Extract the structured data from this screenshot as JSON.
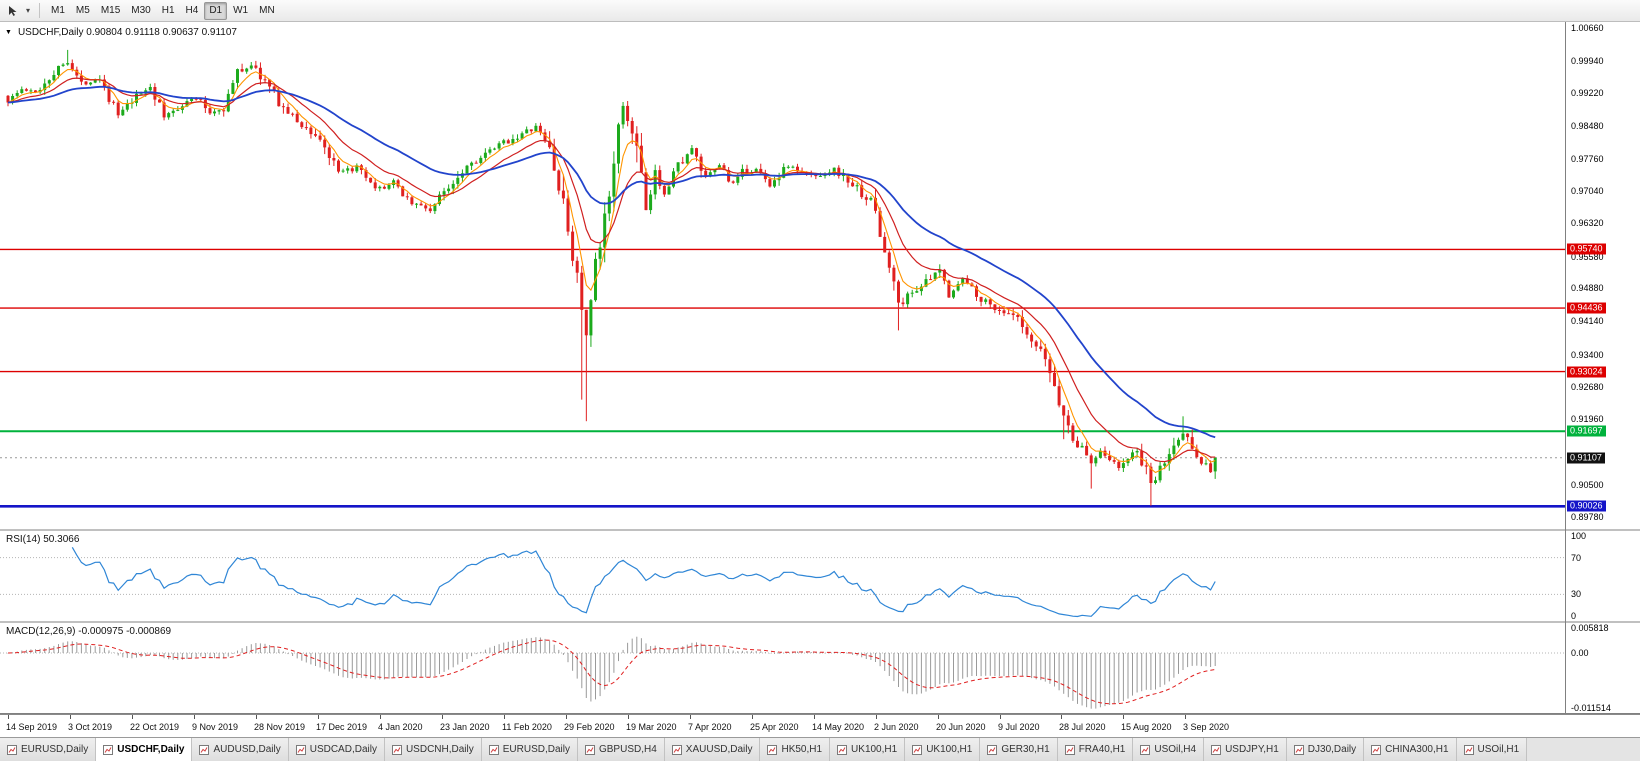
{
  "toolbar": {
    "timeframes": [
      {
        "label": "M1",
        "active": false
      },
      {
        "label": "M5",
        "active": false
      },
      {
        "label": "M15",
        "active": false
      },
      {
        "label": "M30",
        "active": false
      },
      {
        "label": "H1",
        "active": false
      },
      {
        "label": "H4",
        "active": false
      },
      {
        "label": "D1",
        "active": true
      },
      {
        "label": "W1",
        "active": false
      },
      {
        "label": "MN",
        "active": false
      }
    ]
  },
  "main_chart": {
    "title": "USDCHF,Daily",
    "ohlc_text": "0.90804 0.91118 0.90637 0.91107",
    "collapse_arrow": "▼",
    "price_range": {
      "top": 1.008,
      "bottom": 0.895
    },
    "grid_labels": [
      {
        "text": "1.00660",
        "value": 1.0066
      },
      {
        "text": "0.99940",
        "value": 0.9994
      },
      {
        "text": "0.99220",
        "value": 0.9922
      },
      {
        "text": "0.98480",
        "value": 0.9848
      },
      {
        "text": "0.97760",
        "value": 0.9776
      },
      {
        "text": "0.97040",
        "value": 0.9704
      },
      {
        "text": "0.96320",
        "value": 0.9632
      },
      {
        "text": "0.95580",
        "value": 0.9558
      },
      {
        "text": "0.94880",
        "value": 0.9488
      },
      {
        "text": "0.94140",
        "value": 0.9414
      },
      {
        "text": "0.93400",
        "value": 0.934
      },
      {
        "text": "0.92680",
        "value": 0.9268
      },
      {
        "text": "0.91960",
        "value": 0.9196
      },
      {
        "text": "0.90500",
        "value": 0.905
      },
      {
        "text": "0.89780",
        "value": 0.8978
      }
    ],
    "hlines": [
      {
        "value": 0.9574,
        "label": "0.95740",
        "color": "#dd0000",
        "width": 1.4
      },
      {
        "value": 0.94436,
        "label": "0.94436",
        "color": "#dd0000",
        "width": 1.4
      },
      {
        "value": 0.93024,
        "label": "0.93024",
        "color": "#dd0000",
        "width": 1.4
      },
      {
        "value": 0.91697,
        "label": "0.91697",
        "color": "#00b23c",
        "width": 2
      },
      {
        "value": 0.90026,
        "label": "0.90026",
        "color": "#1414c8",
        "width": 2.6
      }
    ],
    "current_price": {
      "value": 0.91107,
      "label": "0.91107",
      "badge_color": "#111111"
    }
  },
  "rsi_panel": {
    "title": "RSI(14)",
    "value": "50.3066",
    "line_color": "#2f86d6",
    "levels": [
      70,
      30
    ],
    "axis_labels": [
      {
        "text": "100",
        "value": 100
      },
      {
        "text": "70",
        "value": 70
      },
      {
        "text": "30",
        "value": 30
      },
      {
        "text": "0",
        "value": 0
      }
    ]
  },
  "macd_panel": {
    "title": "MACD(12,26,9)",
    "values_text": "-0.000975 -0.000869",
    "hist_color": "#9a9a9a",
    "signal_color": "#e02020",
    "range": {
      "top": 0.0064,
      "bottom": -0.0126
    },
    "axis_labels": [
      {
        "text": "0.005818",
        "value": 0.005818
      },
      {
        "text": "0.00",
        "value": 0
      },
      {
        "text": "-0.011514",
        "value": -0.011514
      }
    ]
  },
  "time_axis": {
    "labels": [
      "14 Sep 2019",
      "3 Oct 2019",
      "22 Oct 2019",
      "9 Nov 2019",
      "28 Nov 2019",
      "17 Dec 2019",
      "4 Jan 2020",
      "23 Jan 2020",
      "11 Feb 2020",
      "29 Feb 2020",
      "19 Mar 2020",
      "7 Apr 2020",
      "25 Apr 2020",
      "14 May 2020",
      "2 Jun 2020",
      "20 Jun 2020",
      "9 Jul 2020",
      "28 Jul 2020",
      "15 Aug 2020",
      "3 Sep 2020"
    ]
  },
  "tabs": [
    {
      "label": "EURUSD,Daily",
      "active": false
    },
    {
      "label": "USDCHF,Daily",
      "active": true
    },
    {
      "label": "AUDUSD,Daily",
      "active": false
    },
    {
      "label": "USDCAD,Daily",
      "active": false
    },
    {
      "label": "USDCNH,Daily",
      "active": false
    },
    {
      "label": "EURUSD,Daily",
      "active": false
    },
    {
      "label": "GBPUSD,H4",
      "active": false
    },
    {
      "label": "XAUUSD,Daily",
      "active": false
    },
    {
      "label": "HK50,H1",
      "active": false
    },
    {
      "label": "UK100,H1",
      "active": false
    },
    {
      "label": "UK100,H1",
      "active": false
    },
    {
      "label": "GER30,H1",
      "active": false
    },
    {
      "label": "FRA40,H1",
      "active": false
    },
    {
      "label": "USOil,H4",
      "active": false
    },
    {
      "label": "USDJPY,H1",
      "active": false
    },
    {
      "label": "DJ30,Daily",
      "active": false
    },
    {
      "label": "CHINA300,H1",
      "active": false
    },
    {
      "label": "USOil,H1",
      "active": false
    }
  ],
  "chart_data": {
    "type": "candlestick",
    "symbol": "USDCHF",
    "timeframe": "Daily",
    "bars": 264,
    "up_color": "#1caa1c",
    "down_color": "#e02020",
    "last_bar": {
      "o": 0.90804,
      "h": 0.91118,
      "l": 0.90637,
      "c": 0.91107
    },
    "ma": [
      {
        "period": 5,
        "color": "#ff9500",
        "width": 1.1
      },
      {
        "period": 13,
        "color": "#d02020",
        "width": 1.2
      },
      {
        "period": 34,
        "color": "#2244cc",
        "width": 1.8
      }
    ],
    "indicators": {
      "rsi": {
        "period": 14,
        "last": 50.3066
      },
      "macd": {
        "fast": 12,
        "slow": 26,
        "signal": 9,
        "last_macd": -0.000975,
        "last_signal": -0.000869
      }
    },
    "anchors": [
      [
        0,
        0.9905
      ],
      [
        3,
        0.993
      ],
      [
        6,
        0.9922
      ],
      [
        10,
        0.9968
      ],
      [
        13,
        0.9995
      ],
      [
        16,
        0.9942
      ],
      [
        20,
        0.9958
      ],
      [
        24,
        0.9872
      ],
      [
        28,
        0.9912
      ],
      [
        31,
        0.9938
      ],
      [
        34,
        0.9868
      ],
      [
        38,
        0.9898
      ],
      [
        41,
        0.9912
      ],
      [
        44,
        0.9878
      ],
      [
        47,
        0.989
      ],
      [
        50,
        0.9968
      ],
      [
        53,
        0.9985
      ],
      [
        56,
        0.9948
      ],
      [
        60,
        0.9888
      ],
      [
        64,
        0.985
      ],
      [
        68,
        0.982
      ],
      [
        72,
        0.9742
      ],
      [
        76,
        0.9756
      ],
      [
        80,
        0.9705
      ],
      [
        84,
        0.9722
      ],
      [
        88,
        0.9678
      ],
      [
        92,
        0.9662
      ],
      [
        96,
        0.9715
      ],
      [
        100,
        0.9762
      ],
      [
        104,
        0.9784
      ],
      [
        108,
        0.9812
      ],
      [
        112,
        0.983
      ],
      [
        115,
        0.9845
      ],
      [
        118,
        0.98
      ],
      [
        120,
        0.9712
      ],
      [
        122,
        0.9618
      ],
      [
        124,
        0.9512
      ],
      [
        126,
        0.9378
      ],
      [
        127,
        0.9455
      ],
      [
        128,
        0.953
      ],
      [
        129,
        0.9575
      ],
      [
        130,
        0.964
      ],
      [
        131,
        0.97
      ],
      [
        132,
        0.979
      ],
      [
        134,
        0.9884
      ],
      [
        136,
        0.984
      ],
      [
        138,
        0.974
      ],
      [
        139,
        0.9652
      ],
      [
        141,
        0.9742
      ],
      [
        143,
        0.97
      ],
      [
        145,
        0.9745
      ],
      [
        147,
        0.9775
      ],
      [
        149,
        0.9795
      ],
      [
        152,
        0.973
      ],
      [
        155,
        0.9762
      ],
      [
        158,
        0.9718
      ],
      [
        160,
        0.9745
      ],
      [
        163,
        0.9752
      ],
      [
        166,
        0.9718
      ],
      [
        170,
        0.9762
      ],
      [
        173,
        0.9742
      ],
      [
        176,
        0.9738
      ],
      [
        180,
        0.9752
      ],
      [
        184,
        0.9718
      ],
      [
        187,
        0.969
      ],
      [
        189,
        0.9662
      ],
      [
        191,
        0.956
      ],
      [
        193,
        0.9505
      ],
      [
        194,
        0.9448
      ],
      [
        196,
        0.947
      ],
      [
        198,
        0.9488
      ],
      [
        201,
        0.9508
      ],
      [
        203,
        0.9528
      ],
      [
        205,
        0.9475
      ],
      [
        208,
        0.9508
      ],
      [
        210,
        0.9488
      ],
      [
        212,
        0.9465
      ],
      [
        214,
        0.945
      ],
      [
        216,
        0.944
      ],
      [
        218,
        0.9428
      ],
      [
        220,
        0.9418
      ],
      [
        222,
        0.9375
      ],
      [
        224,
        0.9355
      ],
      [
        226,
        0.933
      ],
      [
        228,
        0.927
      ],
      [
        230,
        0.9205
      ],
      [
        231,
        0.9174
      ],
      [
        233,
        0.914
      ],
      [
        235,
        0.9118
      ],
      [
        236,
        0.9098
      ],
      [
        238,
        0.913
      ],
      [
        240,
        0.911
      ],
      [
        242,
        0.9086
      ],
      [
        244,
        0.9112
      ],
      [
        246,
        0.9125
      ],
      [
        248,
        0.908
      ],
      [
        249,
        0.9048
      ],
      [
        250,
        0.9062
      ],
      [
        251,
        0.9086
      ],
      [
        253,
        0.9118
      ],
      [
        255,
        0.9152
      ],
      [
        256,
        0.9165
      ],
      [
        258,
        0.914
      ],
      [
        260,
        0.9105
      ],
      [
        262,
        0.9082
      ],
      [
        263,
        0.91107
      ]
    ],
    "wick_overrides": [
      {
        "bar": 13,
        "high": 1.0018
      },
      {
        "bar": 125,
        "low": 0.924
      },
      {
        "bar": 126,
        "low": 0.9192
      },
      {
        "bar": 134,
        "high": 0.9902
      },
      {
        "bar": 194,
        "low": 0.9394
      },
      {
        "bar": 230,
        "low": 0.9152
      },
      {
        "bar": 236,
        "low": 0.9042
      },
      {
        "bar": 249,
        "low": 0.9004
      },
      {
        "bar": 256,
        "high": 0.9203
      }
    ]
  }
}
